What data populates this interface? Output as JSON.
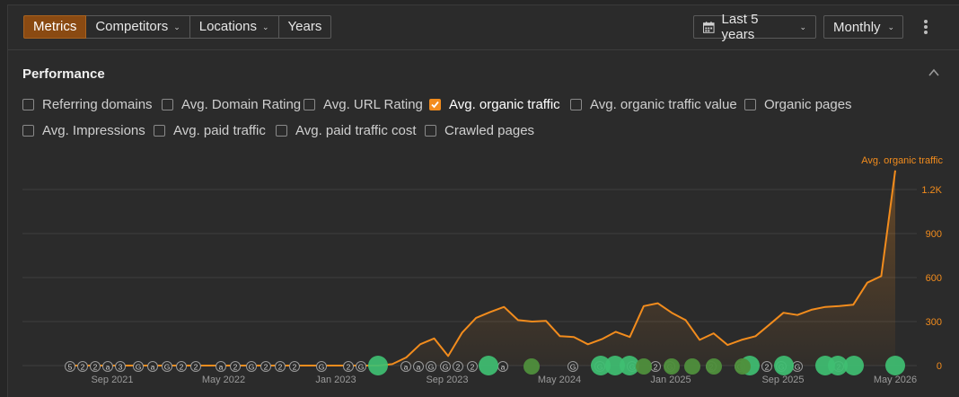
{
  "toolbar": {
    "tabs": [
      {
        "label": "Metrics",
        "dropdown": false,
        "active": true
      },
      {
        "label": "Competitors",
        "dropdown": true,
        "active": false
      },
      {
        "label": "Locations",
        "dropdown": true,
        "active": false
      },
      {
        "label": "Years",
        "dropdown": false,
        "active": false
      }
    ],
    "date_range": "Last 5 years",
    "granularity": "Monthly"
  },
  "performance": {
    "title": "Performance",
    "metrics": [
      {
        "label": "Referring domains",
        "checked": false
      },
      {
        "label": "Avg. Domain Rating",
        "checked": false
      },
      {
        "label": "Avg. URL Rating",
        "checked": false
      },
      {
        "label": "Avg. organic traffic",
        "checked": true
      },
      {
        "label": "Avg. organic traffic value",
        "checked": false
      },
      {
        "label": "Organic pages",
        "checked": false
      },
      {
        "label": "Avg. Impressions",
        "checked": false
      },
      {
        "label": "Avg. paid traffic",
        "checked": false
      },
      {
        "label": "Avg. paid traffic cost",
        "checked": false
      },
      {
        "label": "Crawled pages",
        "checked": false
      }
    ]
  },
  "colors": {
    "accent": "#f28c1d",
    "tab_active": "#8a4a12",
    "grid": "#3f3f3f",
    "marker_green": "#3fbf72",
    "marker_dark_green": "#4f8f3c"
  },
  "chart_data": {
    "type": "line",
    "series": [
      {
        "name": "Avg. organic traffic",
        "x": [
          "2021-06",
          "2021-07",
          "2021-08",
          "2021-09",
          "2021-10",
          "2021-11",
          "2021-12",
          "2022-01",
          "2022-02",
          "2022-03",
          "2022-04",
          "2022-05",
          "2022-06",
          "2022-07",
          "2022-08",
          "2022-09",
          "2022-10",
          "2022-11",
          "2022-12",
          "2023-01",
          "2023-02",
          "2023-03",
          "2023-04",
          "2023-05",
          "2023-06",
          "2023-07",
          "2023-08",
          "2023-09",
          "2023-10",
          "2023-11",
          "2023-12",
          "2024-01",
          "2024-02",
          "2024-03",
          "2024-04",
          "2024-05",
          "2024-06",
          "2024-07",
          "2024-08",
          "2024-09",
          "2024-10",
          "2024-11",
          "2024-12",
          "2025-01",
          "2025-02",
          "2025-03",
          "2025-04",
          "2025-05",
          "2025-06",
          "2025-07",
          "2025-08",
          "2025-09",
          "2025-10",
          "2025-11",
          "2025-12",
          "2026-01",
          "2026-02",
          "2026-03",
          "2026-04",
          "2026-05"
        ],
        "values": [
          0,
          0,
          0,
          0,
          0,
          0,
          0,
          0,
          0,
          0,
          0,
          0,
          0,
          0,
          0,
          0,
          0,
          0,
          0,
          0,
          0,
          0,
          0,
          10,
          55,
          145,
          185,
          65,
          225,
          325,
          365,
          400,
          310,
          300,
          305,
          200,
          195,
          145,
          180,
          230,
          195,
          405,
          425,
          360,
          310,
          175,
          220,
          140,
          175,
          200,
          280,
          360,
          345,
          380,
          400,
          405,
          415,
          565,
          610,
          1330
        ]
      }
    ],
    "markers": [
      "5",
      "2",
      "2",
      "a",
      "3",
      "G",
      "a",
      "G",
      "2",
      "2",
      "a",
      "2",
      "G",
      "2",
      "2",
      "2",
      "G",
      "2",
      "G",
      "a",
      "a",
      "G",
      "G",
      "2",
      "2",
      "a",
      "G",
      "G",
      "G",
      "2",
      "G",
      "2",
      "G",
      "2",
      "G",
      "G",
      "2"
    ],
    "x_tick_labels": [
      "Sep 2021",
      "May 2022",
      "Jan 2023",
      "Sep 2023",
      "May 2024",
      "Jan 2025",
      "Sep 2025",
      "May 2026"
    ],
    "y_tick_labels": [
      "0",
      "300",
      "600",
      "900",
      "1.2K"
    ],
    "ylim": [
      0,
      1400
    ],
    "axis_title": "Avg. organic traffic",
    "y_axis_position": "right",
    "grid": true
  }
}
